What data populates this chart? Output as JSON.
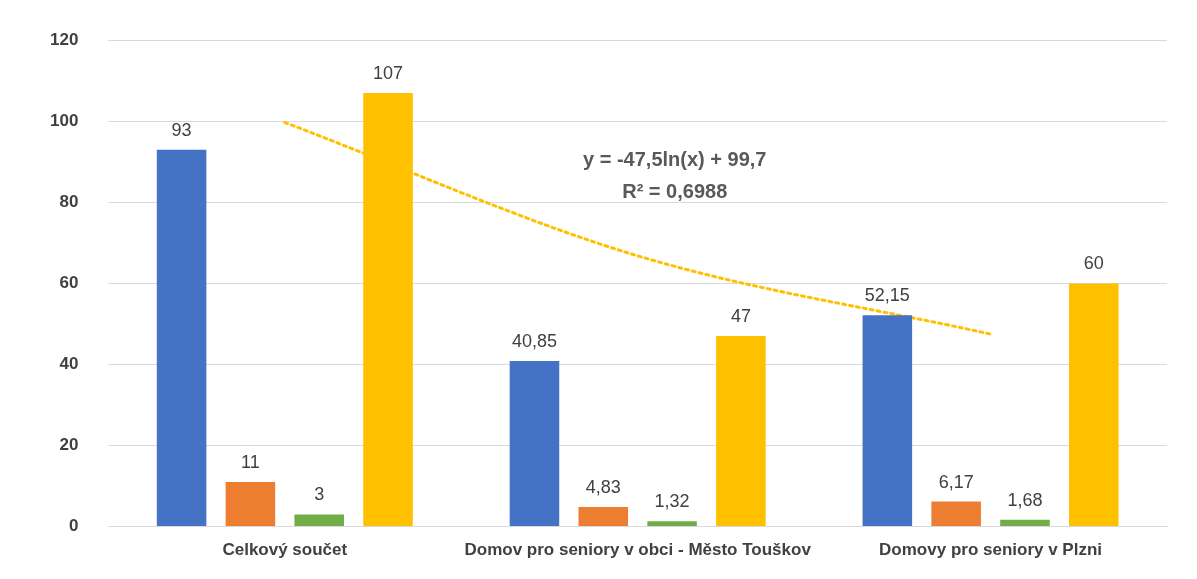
{
  "chart_data": {
    "type": "bar",
    "categories": [
      "Celkový součet",
      "Domov pro seniory v obci - Město Touškov",
      "Domovy pro seniory v Plzni"
    ],
    "series": [
      {
        "color": "#4472c4",
        "values": [
          93,
          40.85,
          52.15
        ],
        "value_labels": [
          "93",
          "40,85",
          "52,15"
        ]
      },
      {
        "color": "#ed7d31",
        "values": [
          11,
          4.83,
          6.17
        ],
        "value_labels": [
          "11",
          "4,83",
          "6,17"
        ]
      },
      {
        "color": "#70ad47",
        "values": [
          3,
          1.32,
          1.68
        ],
        "value_labels": [
          "3",
          "1,32",
          "1,68"
        ]
      },
      {
        "color": "#ffc000",
        "values": [
          107,
          47,
          60
        ],
        "value_labels": [
          "107",
          "47",
          "60"
        ]
      },
      {
        "type": "line",
        "color": "#ffc000",
        "line_style": "dotted",
        "marker": "none",
        "x": [
          "Celkový součet",
          "Domov pro seniory v obci - Město Touškov",
          "Domovy pro seniory v Plzni"
        ],
        "values": [
          99.7,
          66.8,
          47.5
        ]
      }
    ],
    "ylim": [
      0,
      120
    ],
    "yticks": [
      0,
      20,
      40,
      60,
      80,
      100,
      120
    ],
    "grid": "y",
    "legend": false,
    "annotations": [
      "y = -47,5ln(x) + 99,7",
      "R² = 0,6988"
    ]
  }
}
